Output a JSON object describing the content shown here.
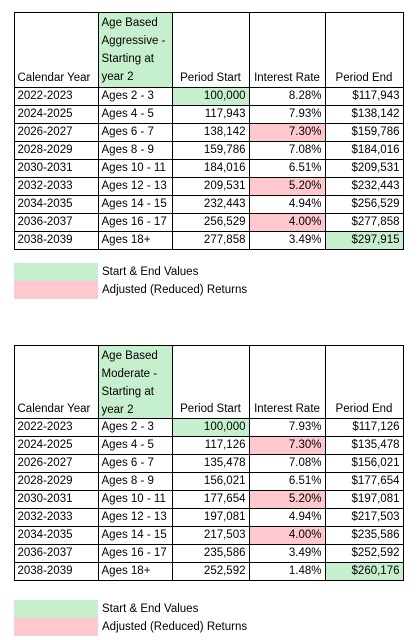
{
  "tables": [
    {
      "header": [
        "Calendar Year",
        "Age Based Aggressive - Starting at year 2",
        "Period Start",
        "Interest Rate",
        "Period End"
      ],
      "rows": [
        [
          "2022-2023",
          "Ages 2 - 3",
          "100,000",
          "8.28%",
          "$117,943"
        ],
        [
          "2024-2025",
          "Ages 4 - 5",
          "117,943",
          "7.93%",
          "$138,142"
        ],
        [
          "2026-2027",
          "Ages 6 - 7",
          "138,142",
          "7.30%",
          "$159,786"
        ],
        [
          "2028-2029",
          "Ages 8 - 9",
          "159,786",
          "7.08%",
          "$184,016"
        ],
        [
          "2030-2031",
          "Ages 10 - 11",
          "184,016",
          "6.51%",
          "$209,531"
        ],
        [
          "2032-2033",
          "Ages 12 - 13",
          "209,531",
          "5.20%",
          "$232,443"
        ],
        [
          "2034-2035",
          "Ages 14 - 15",
          "232,443",
          "4.94%",
          "$256,529"
        ],
        [
          "2036-2037",
          "Ages 16 - 17",
          "256,529",
          "4.00%",
          "$277,858"
        ],
        [
          "2038-2039",
          "Ages 18+",
          "277,858",
          "3.49%",
          "$297,915"
        ]
      ],
      "green_cells": [
        [
          0,
          2
        ],
        [
          8,
          4
        ]
      ],
      "pink_cells": [
        [
          2,
          3
        ],
        [
          5,
          3
        ],
        [
          7,
          3
        ]
      ],
      "legend": [
        "Start & End Values",
        "Adjusted (Reduced) Returns"
      ]
    },
    {
      "header": [
        "Calendar Year",
        "Age Based Moderate - Starting at year 2",
        "Period Start",
        "Interest Rate",
        "Period End"
      ],
      "rows": [
        [
          "2022-2023",
          "Ages 2 - 3",
          "100,000",
          "7.93%",
          "$117,126"
        ],
        [
          "2024-2025",
          "Ages 4 - 5",
          "117,126",
          "7.30%",
          "$135,478"
        ],
        [
          "2026-2027",
          "Ages 6 - 7",
          "135,478",
          "7.08%",
          "$156,021"
        ],
        [
          "2028-2029",
          "Ages 8 - 9",
          "156,021",
          "6.51%",
          "$177,654"
        ],
        [
          "2030-2031",
          "Ages 10 - 11",
          "177,654",
          "5.20%",
          "$197,081"
        ],
        [
          "2032-2033",
          "Ages 12 - 13",
          "197,081",
          "4.94%",
          "$217,503"
        ],
        [
          "2034-2035",
          "Ages 14 - 15",
          "217,503",
          "4.00%",
          "$235,586"
        ],
        [
          "2036-2037",
          "Ages 16 - 17",
          "235,586",
          "3.49%",
          "$252,592"
        ],
        [
          "2038-2039",
          "Ages 18+",
          "252,592",
          "1.48%",
          "$260,176"
        ]
      ],
      "green_cells": [
        [
          0,
          2
        ],
        [
          8,
          4
        ]
      ],
      "pink_cells": [
        [
          1,
          3
        ],
        [
          4,
          3
        ],
        [
          6,
          3
        ]
      ],
      "legend": [
        "Start & End Values",
        "Adjusted (Reduced) Returns"
      ]
    }
  ]
}
